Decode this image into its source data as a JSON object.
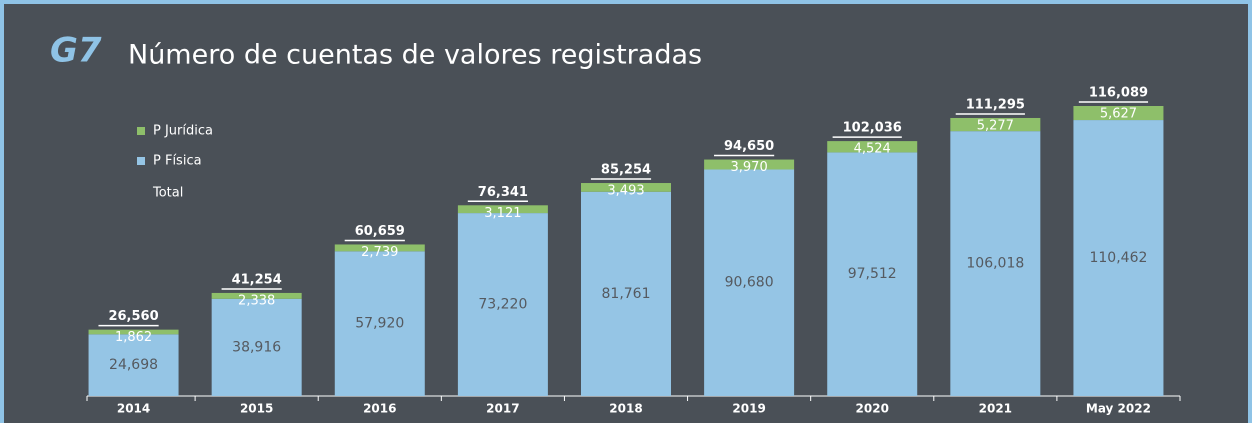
{
  "chart_data": {
    "type": "stacked_bar",
    "label": "G7",
    "title": "Número de cuentas de valores registradas",
    "categories": [
      "2014",
      "2015",
      "2016",
      "2017",
      "2018",
      "2019",
      "2020",
      "2021",
      "May 2022"
    ],
    "series": [
      {
        "name": "P Física",
        "color": "#95c5e5",
        "values": [
          24698,
          38916,
          57920,
          73220,
          81761,
          90680,
          97512,
          106018,
          110462
        ],
        "value_labels": [
          "24,698",
          "38,916",
          "57,920",
          "73,220",
          "81,761",
          "90,680",
          "97,512",
          "106,018",
          "110,462"
        ]
      },
      {
        "name": "P Jurídica",
        "color": "#8ebf6a",
        "values": [
          1862,
          2338,
          2739,
          3121,
          3493,
          3970,
          4524,
          5277,
          5627
        ],
        "value_labels": [
          "1,862",
          "2,338",
          "2,739",
          "3,121",
          "3,493",
          "3,970",
          "4,524",
          "5,277",
          "5,627"
        ]
      }
    ],
    "total": {
      "name": "Total",
      "values": [
        26560,
        41254,
        60659,
        76341,
        85254,
        94650,
        102036,
        111295,
        116089
      ],
      "value_labels": [
        "26,560",
        "41,254",
        "60,659",
        "76,341",
        "85,254",
        "94,650",
        "102,036",
        "111,295",
        "116,089"
      ]
    }
  }
}
